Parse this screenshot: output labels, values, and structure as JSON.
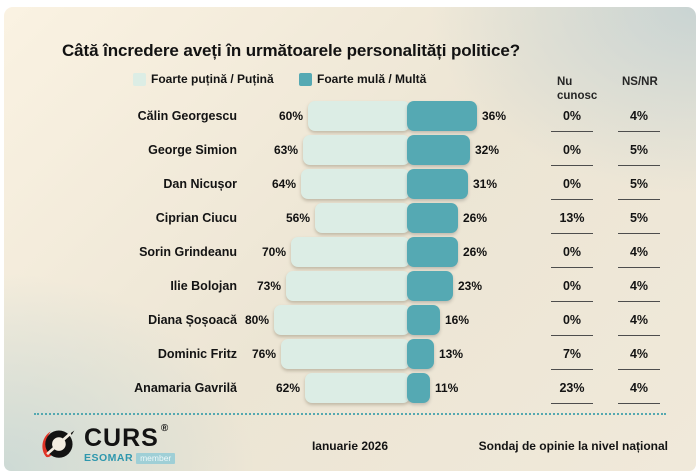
{
  "title": "Câtă încredere aveți în următoarele personalități politice?",
  "legend": [
    {
      "label": "Foarte puțină / Puțină",
      "color": "#dcede5"
    },
    {
      "label": "Foarte mulă / Multă",
      "color": "#55a9b3"
    }
  ],
  "columns": {
    "nu_cunosc": "Nu cunosc",
    "ns_nr": "NS/NR"
  },
  "chart_data": {
    "type": "bar",
    "orientation": "horizontal",
    "title": "Câtă încredere aveți în următoarele personalități politice?",
    "categories": [
      "Călin Georgescu",
      "George Simion",
      "Dan Nicușor",
      "Ciprian Ciucu",
      "Sorin Grindeanu",
      "Ilie Bolojan",
      "Diana Șoșoacă",
      "Dominic Fritz",
      "Anamaria Gavrilă"
    ],
    "series": [
      {
        "name": "Foarte puțină / Puțină",
        "color": "#dcede5",
        "values": [
          60,
          63,
          64,
          56,
          70,
          73,
          80,
          76,
          62
        ]
      },
      {
        "name": "Foarte mulă / Multă",
        "color": "#55a9b3",
        "values": [
          36,
          32,
          31,
          26,
          26,
          23,
          16,
          13,
          11
        ]
      },
      {
        "name": "Nu cunosc",
        "values": [
          0,
          0,
          0,
          13,
          0,
          0,
          0,
          7,
          23
        ]
      },
      {
        "name": "NS/NR",
        "values": [
          4,
          5,
          5,
          5,
          4,
          4,
          4,
          4,
          4
        ]
      }
    ],
    "value_suffix": "%",
    "legend_position": "top",
    "grid": false
  },
  "footer": {
    "brand": "CURS",
    "brand_reg": "®",
    "brand_sub": "ESOMAR",
    "brand_sub2": "member",
    "date": "Ianuarie 2026",
    "note": "Sondaj de opinie la nivel național"
  },
  "colors": {
    "bar_negative": "#dcede5",
    "bar_positive": "#55a9b3",
    "divider_dotted": "#53a8b0",
    "text": "#131313",
    "brand_accent": "#2e97ad",
    "logo_red": "#e03427"
  }
}
